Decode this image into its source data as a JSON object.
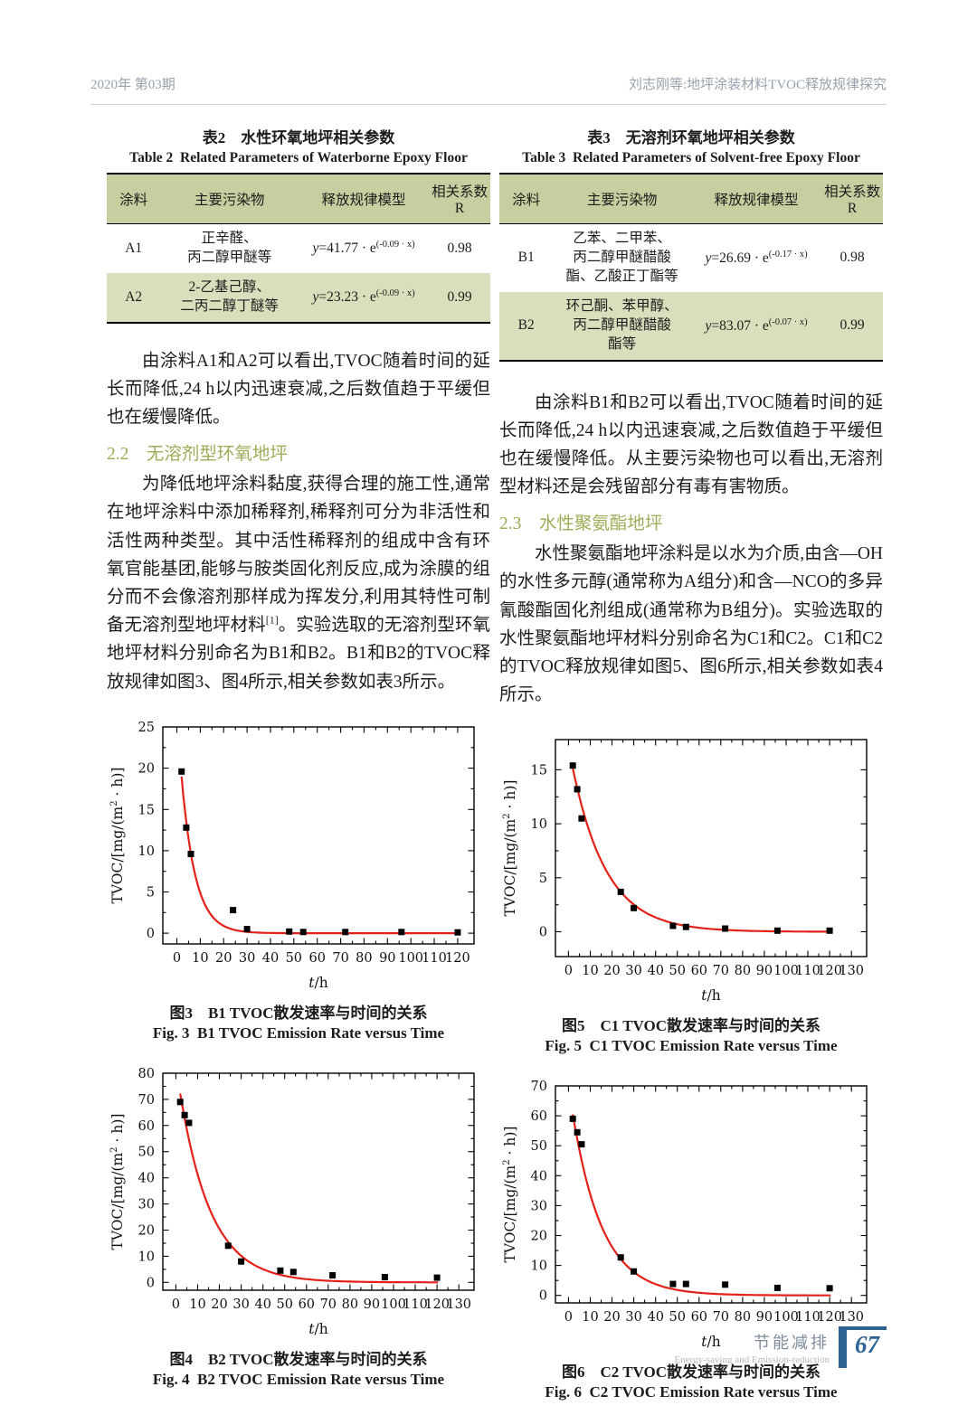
{
  "header": {
    "left": "2020年 第03期",
    "right": "刘志刚等:地坪涂装材料TVOC释放规律探究"
  },
  "tables": [
    {
      "caption_cn": "表2　水性环氧地坪相关参数",
      "caption_en": "Table 2  Related Parameters of Waterborne Epoxy Floor",
      "columns": [
        "涂料",
        "主要污染物",
        "释放规律模型",
        "相关系数R"
      ],
      "rows": [
        {
          "coating": "A1",
          "pollutants": "正辛醛、\n丙二醇甲醚等",
          "eq_y": "y",
          "eq_mid": "=41.77 · e",
          "eq_sup": "(-0.09 · x)",
          "r": "0.98"
        },
        {
          "coating": "A2",
          "pollutants": "2-乙基己醇、\n二丙二醇丁醚等",
          "eq_y": "y",
          "eq_mid": "=23.23 · e",
          "eq_sup": "(-0.09 · x)",
          "r": "0.99"
        }
      ]
    },
    {
      "caption_cn": "表3　无溶剂环氧地坪相关参数",
      "caption_en": "Table 3  Related Parameters of Solvent-free Epoxy Floor",
      "columns": [
        "涂料",
        "主要污染物",
        "释放规律模型",
        "相关系数R"
      ],
      "rows": [
        {
          "coating": "B1",
          "pollutants": "乙苯、二甲苯、\n丙二醇甲醚醋酸\n酯、乙酸正丁酯等",
          "eq_y": "y",
          "eq_mid": "=26.69 · e",
          "eq_sup": "(-0.17 · x)",
          "r": "0.98"
        },
        {
          "coating": "B2",
          "pollutants": "环己酮、苯甲醇、\n丙二醇甲醚醋酸\n酯等",
          "eq_y": "y",
          "eq_mid": "=83.07 · e",
          "eq_sup": "(-0.07 · x)",
          "r": "0.99"
        }
      ]
    }
  ],
  "left_column": {
    "p1": "由涂料A1和A2可以看出,TVOC随着时间的延长而降低,24 h以内迅速衰减,之后数值趋于平缓但也在缓慢降低。",
    "heading_22": "2.2　无溶剂型环氧地坪",
    "p2_a": "为降低地坪涂料黏度,获得合理的施工性,通常在地坪涂料中添加稀释剂,稀释剂可分为非活性和活性两种类型。其中活性稀释剂的组成中含有环氧官能基团,能够与胺类固化剂反应,成为涂膜的组分而不会像溶剂那样成为挥发分,利用其特性可制备无溶剂型地坪材料",
    "p2_sup": "[1]",
    "p2_b": "。实验选取的无溶剂型环氧地坪材料分别命名为B1和B2。B1和B2的TVOC释放规律如图3、图4所示,相关参数如表3所示。"
  },
  "right_column": {
    "p1": "由涂料B1和B2可以看出,TVOC随着时间的延长而降低,24 h以内迅速衰减,之后数值趋于平缓但也在缓慢降低。从主要污染物也可以看出,无溶剂型材料还是会残留部分有毒有害物质。",
    "heading_23": "2.3　水性聚氨酯地坪",
    "p2": "水性聚氨酯地坪涂料是以水为介质,由含—OH的水性多元醇(通常称为A组分)和含—NCO的多异氰酸酯固化剂组成(通常称为B组分)。实验选取的水性聚氨酯地坪材料分别命名为C1和C2。C1和C2的TVOC释放规律如图5、图6所示,相关参数如表4所示。"
  },
  "chart_data": [
    {
      "id": "fig3-b1",
      "type": "scatter",
      "caption_cn": "图3　B1 TVOC散发速率与时间的关系",
      "caption_en": "Fig. 3  B1 TVOC Emission Rate versus Time",
      "xlabel": "t/h",
      "ylabel": "TVOC/[mg/(m2 · h)]",
      "ylabel_pre": "TVOC/[mg/(m",
      "ylabel_sup": "2",
      "ylabel_post": " · h)]",
      "xlim": [
        -6,
        127
      ],
      "ylim": [
        -1.3,
        25
      ],
      "xticks": [
        0,
        10,
        20,
        30,
        40,
        50,
        60,
        70,
        80,
        90,
        100,
        110,
        120
      ],
      "yticks": [
        0,
        5,
        10,
        15,
        20,
        25
      ],
      "x_minor_step": 5,
      "y_minor_step": 2.5,
      "points": [
        [
          2,
          19.6
        ],
        [
          4,
          12.8
        ],
        [
          6,
          9.6
        ],
        [
          24,
          2.8
        ],
        [
          30,
          0.5
        ],
        [
          48,
          0.2
        ],
        [
          54,
          0.15
        ],
        [
          72,
          0.15
        ],
        [
          96,
          0.15
        ],
        [
          120,
          0.1
        ]
      ],
      "fit": {
        "A": 26.69,
        "k": 0.17
      },
      "curve_color": "#e32119",
      "point_color": "#000000"
    },
    {
      "id": "fig4-b2",
      "type": "scatter",
      "caption_cn": "图4　B2 TVOC散发速率与时间的关系",
      "caption_en": "Fig. 4  B2 TVOC Emission Rate versus Time",
      "xlabel": "t/h",
      "ylabel": "TVOC/[mg/(m2 · h)]",
      "ylabel_pre": "TVOC/[mg/(m",
      "ylabel_sup": "2",
      "ylabel_post": " · h)]",
      "xlim": [
        -6,
        137
      ],
      "ylim": [
        -3,
        80
      ],
      "xticks": [
        0,
        10,
        20,
        30,
        40,
        50,
        60,
        70,
        80,
        90,
        100,
        110,
        120,
        130
      ],
      "yticks": [
        0,
        10,
        20,
        30,
        40,
        50,
        60,
        70,
        80
      ],
      "x_minor_step": 5,
      "y_minor_step": 5,
      "points": [
        [
          2,
          69
        ],
        [
          4,
          64
        ],
        [
          6,
          61
        ],
        [
          24,
          14
        ],
        [
          30,
          8
        ],
        [
          48,
          4.5
        ],
        [
          54,
          4
        ],
        [
          72,
          2.7
        ],
        [
          96,
          2
        ],
        [
          120,
          1.8
        ]
      ],
      "fit": {
        "A": 83.07,
        "k": 0.07
      },
      "curve_color": "#e32119",
      "point_color": "#000000"
    },
    {
      "id": "fig5-c1",
      "type": "scatter",
      "caption_cn": "图5　C1 TVOC散发速率与时间的关系",
      "caption_en": "Fig. 5  C1 TVOC Emission Rate versus Time",
      "xlabel": "t/h",
      "ylabel": "TVOC/[mg/(m2 · h)]",
      "ylabel_pre": "TVOC/[mg/(m",
      "ylabel_sup": "2",
      "ylabel_post": " · h)]",
      "xlim": [
        -6,
        137
      ],
      "ylim": [
        -2.3,
        17.8
      ],
      "xticks": [
        0,
        10,
        20,
        30,
        40,
        50,
        60,
        70,
        80,
        90,
        100,
        110,
        120,
        130
      ],
      "yticks": [
        0,
        5,
        10,
        15
      ],
      "x_minor_step": 5,
      "y_minor_step": 2.5,
      "points": [
        [
          2,
          15.4
        ],
        [
          4,
          13.2
        ],
        [
          6,
          10.5
        ],
        [
          24,
          3.7
        ],
        [
          30,
          2.2
        ],
        [
          48,
          0.55
        ],
        [
          54,
          0.45
        ],
        [
          72,
          0.3
        ],
        [
          96,
          0.1
        ],
        [
          120,
          0.1
        ]
      ],
      "fit": {
        "A": 17.2,
        "k": 0.064
      },
      "curve_color": "#e32119",
      "point_color": "#000000"
    },
    {
      "id": "fig6-c2",
      "type": "scatter",
      "caption_cn": "图6　C2 TVOC散发速率与时间的关系",
      "caption_en": "Fig. 6  C2 TVOC Emission Rate versus Time",
      "xlabel": "t/h",
      "ylabel": "TVOC/[mg/(m2 · h)]",
      "ylabel_pre": "TVOC/[mg/(m",
      "ylabel_sup": "2",
      "ylabel_post": " · h)]",
      "xlim": [
        -6,
        137
      ],
      "ylim": [
        -2.5,
        70
      ],
      "xticks": [
        0,
        10,
        20,
        30,
        40,
        50,
        60,
        70,
        80,
        90,
        100,
        110,
        120,
        130
      ],
      "yticks": [
        0,
        10,
        20,
        30,
        40,
        50,
        60,
        70
      ],
      "x_minor_step": 5,
      "y_minor_step": 5,
      "points": [
        [
          2,
          59
        ],
        [
          4,
          54.5
        ],
        [
          6,
          50.5
        ],
        [
          24,
          12.7
        ],
        [
          30,
          8
        ],
        [
          48,
          3.8
        ],
        [
          54,
          3.8
        ],
        [
          72,
          3.6
        ],
        [
          96,
          2.5
        ],
        [
          120,
          2.4
        ]
      ],
      "fit": {
        "A": 70,
        "k": 0.073
      },
      "curve_color": "#e32119",
      "point_color": "#000000"
    }
  ],
  "footer": {
    "cn": "节能减排",
    "en": "Energy-saving and Emission-reduction",
    "page": "67"
  }
}
